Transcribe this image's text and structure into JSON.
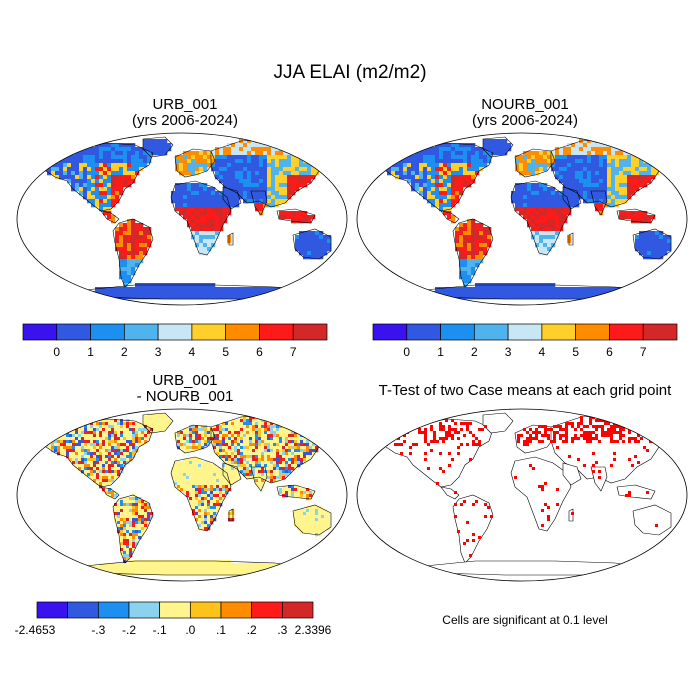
{
  "figure": {
    "title": "JJA ELAI (m2/m2)"
  },
  "panels": [
    {
      "id": "urb",
      "title_line1": "URB_001",
      "title_line2": "(yrs 2006-2024)",
      "colorbar": {
        "colors": [
          "#3a12f0",
          "#3158e0",
          "#1d8ff0",
          "#4fb4ee",
          "#c9e6f4",
          "#ffd02a",
          "#ff8c00",
          "#ff1a1a",
          "#d42828"
        ],
        "labels": [
          "0",
          "1",
          "2",
          "3",
          "4",
          "5",
          "6",
          "7"
        ]
      }
    },
    {
      "id": "nourb",
      "title_line1": "NOURB_001",
      "title_line2": "(yrs 2006-2024)",
      "colorbar": {
        "colors": [
          "#3a12f0",
          "#3158e0",
          "#1d8ff0",
          "#4fb4ee",
          "#c9e6f4",
          "#ffd02a",
          "#ff8c00",
          "#ff1a1a",
          "#d42828"
        ],
        "labels": [
          "0",
          "1",
          "2",
          "3",
          "4",
          "5",
          "6",
          "7"
        ]
      }
    },
    {
      "id": "diff",
      "title_line1": "URB_001",
      "title_line2": "- NOURB_001",
      "colorbar": {
        "colors": [
          "#3a12f0",
          "#3158e0",
          "#1d8ff0",
          "#8ad2ee",
          "#fff58c",
          "#ffc21a",
          "#ff8c00",
          "#ff1a1a",
          "#d42828"
        ],
        "labels": [
          "-2.4653",
          "-.3",
          "-.2",
          "-.1",
          ".0",
          ".1",
          ".2",
          ".3",
          "2.3396"
        ]
      }
    },
    {
      "id": "ttest",
      "title_line1": "T-Test of two Case means at each grid point",
      "note": "Cells are significant at 0.1 level",
      "sig_color": "#ff0000"
    }
  ]
}
